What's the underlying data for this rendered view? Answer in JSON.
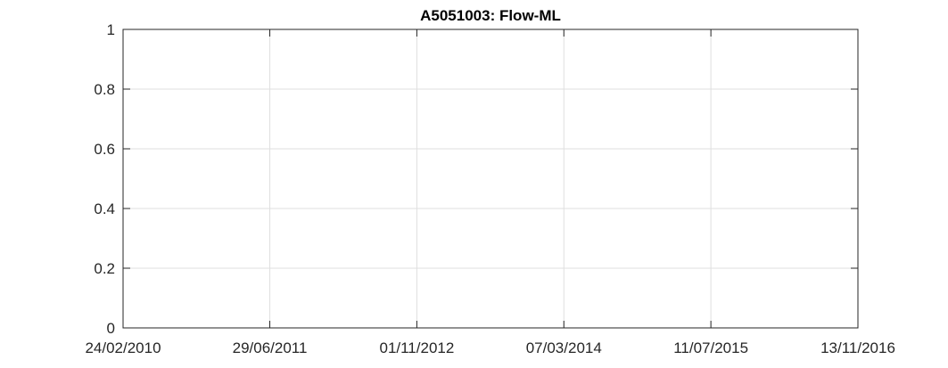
{
  "chart_data": {
    "type": "line",
    "title": "A5051003: Flow-ML",
    "xlabel": "",
    "ylabel": "",
    "x_axis_type": "date",
    "xlim": [
      "2010-02-24",
      "2016-11-13"
    ],
    "x_ticks": [
      "2010-02-24",
      "2011-06-29",
      "2012-11-01",
      "2014-03-07",
      "2015-07-11",
      "2016-11-13"
    ],
    "x_tick_labels": [
      "24/02/2010",
      "29/06/2011",
      "01/11/2012",
      "07/03/2014",
      "11/07/2015",
      "13/11/2016"
    ],
    "ylim": [
      0,
      1
    ],
    "y_ticks": [
      0,
      0.2,
      0.4,
      0.6,
      0.8,
      1
    ],
    "y_tick_labels": [
      "0",
      "0.2",
      "0.4",
      "0.6",
      "0.8",
      "1"
    ],
    "grid": true,
    "series": [],
    "colors": {
      "axis": "#262626",
      "grid": "#dfdfdf",
      "background": "#ffffff"
    }
  }
}
